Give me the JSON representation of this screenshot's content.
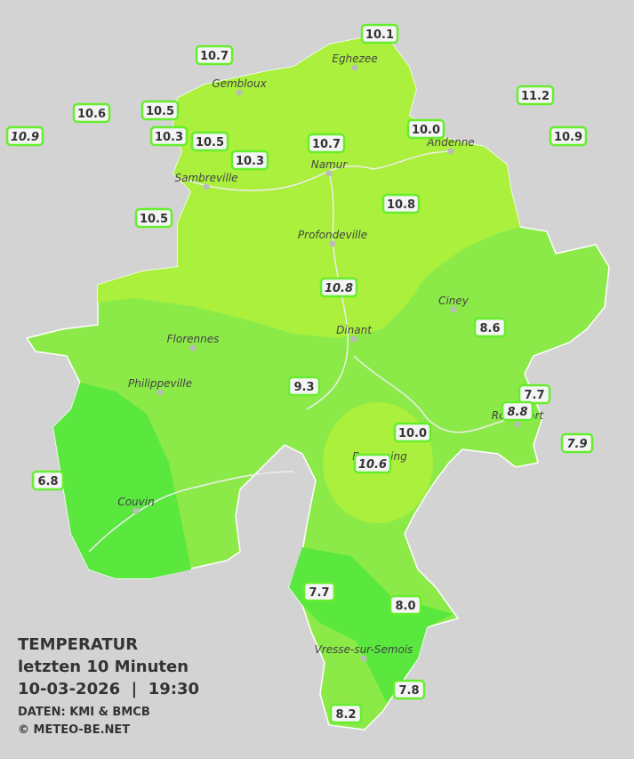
{
  "title": {
    "heading": "TEMPERATUR",
    "period": "letzten 10 Minuten",
    "datetime": "10-03-2026  |  19:30",
    "source": "DATEN: KMI & BMCB",
    "copyright": "© METEO-BE.NET"
  },
  "cities": [
    "Eghezee",
    "Gembloux",
    "Andenne",
    "Namur",
    "Sambreville",
    "Profondeville",
    "Ciney",
    "Dinant",
    "Florennes",
    "Philippeville",
    "Rochefort",
    "Beauraing",
    "Couvin",
    "Vresse-sur-Semois"
  ],
  "stations": [
    {
      "label": "10.1",
      "italic": false
    },
    {
      "label": "10.7",
      "italic": false
    },
    {
      "label": "10.6",
      "italic": false
    },
    {
      "label": "10.5",
      "italic": false
    },
    {
      "label": "11.2",
      "italic": false
    },
    {
      "label": "10.9",
      "italic": true
    },
    {
      "label": "10.3",
      "italic": false
    },
    {
      "label": "10.5",
      "italic": false
    },
    {
      "label": "10.3",
      "italic": false
    },
    {
      "label": "10.7",
      "italic": false
    },
    {
      "label": "10.0",
      "italic": false
    },
    {
      "label": "10.9",
      "italic": false
    },
    {
      "label": "10.5",
      "italic": false
    },
    {
      "label": "10.8",
      "italic": false
    },
    {
      "label": "10.8",
      "italic": true
    },
    {
      "label": "8.6",
      "italic": false
    },
    {
      "label": "9.3",
      "italic": false
    },
    {
      "label": "7.7",
      "italic": false
    },
    {
      "label": "8.8",
      "italic": true
    },
    {
      "label": "7.9",
      "italic": true
    },
    {
      "label": "10.0",
      "italic": false
    },
    {
      "label": "10.6",
      "italic": true
    },
    {
      "label": "6.8",
      "italic": false
    },
    {
      "label": "7.7",
      "italic": false
    },
    {
      "label": "8.0",
      "italic": false
    },
    {
      "label": "7.8",
      "italic": false
    },
    {
      "label": "8.2",
      "italic": false
    }
  ]
}
